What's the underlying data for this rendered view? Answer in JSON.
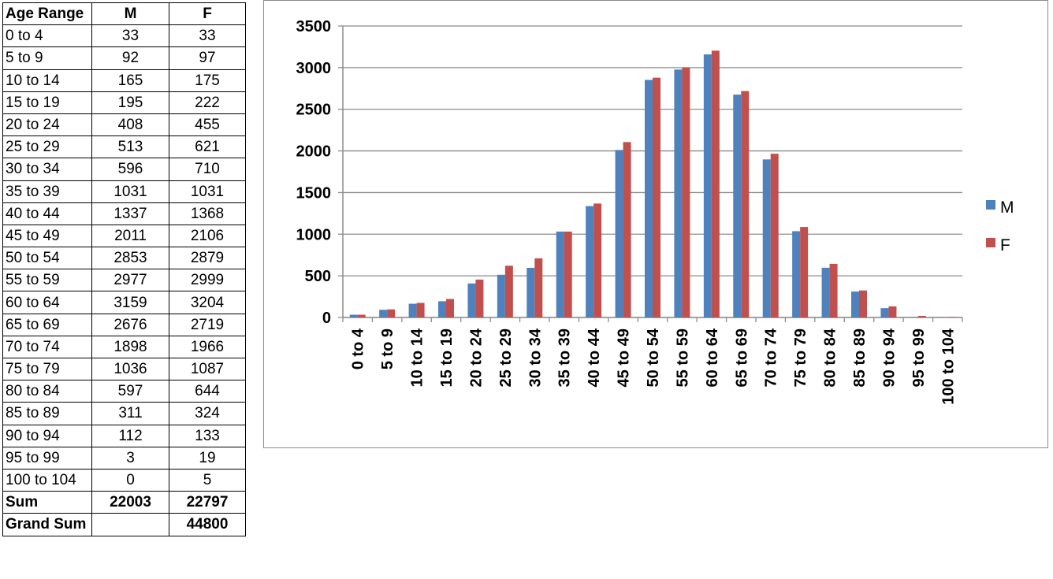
{
  "table": {
    "headers": [
      "Age Range",
      "M",
      "F"
    ],
    "rows": [
      [
        "0 to 4",
        "33",
        "33"
      ],
      [
        "5 to 9",
        "92",
        "97"
      ],
      [
        "10 to 14",
        "165",
        "175"
      ],
      [
        "15 to 19",
        "195",
        "222"
      ],
      [
        "20 to 24",
        "408",
        "455"
      ],
      [
        "25 to 29",
        "513",
        "621"
      ],
      [
        "30 to 34",
        "596",
        "710"
      ],
      [
        "35 to 39",
        "1031",
        "1031"
      ],
      [
        "40 to 44",
        "1337",
        "1368"
      ],
      [
        "45 to 49",
        "2011",
        "2106"
      ],
      [
        "50 to 54",
        "2853",
        "2879"
      ],
      [
        "55 to 59",
        "2977",
        "2999"
      ],
      [
        "60 to 64",
        "3159",
        "3204"
      ],
      [
        "65 to 69",
        "2676",
        "2719"
      ],
      [
        "70 to 74",
        "1898",
        "1966"
      ],
      [
        "75 to 79",
        "1036",
        "1087"
      ],
      [
        "80 to 84",
        "597",
        "644"
      ],
      [
        "85 to 89",
        "311",
        "324"
      ],
      [
        "90 to 94",
        "112",
        "133"
      ],
      [
        "95 to 99",
        "3",
        "19"
      ],
      [
        "100 to 104",
        "0",
        "5"
      ]
    ],
    "sum": [
      "Sum",
      "22003",
      "22797"
    ],
    "grand_sum": [
      "Grand Sum",
      "44800"
    ]
  },
  "chart_data": {
    "type": "bar",
    "categories": [
      "0 to 4",
      "5 to 9",
      "10 to 14",
      "15 to 19",
      "20 to 24",
      "25 to 29",
      "30 to 34",
      "35 to 39",
      "40 to 44",
      "45 to 49",
      "50 to 54",
      "55 to 59",
      "60 to 64",
      "65 to 69",
      "70 to 74",
      "75 to 79",
      "80 to 84",
      "85 to 89",
      "90 to 94",
      "95 to 99",
      "100 to 104"
    ],
    "series": [
      {
        "name": "M",
        "color": "#4f81bd",
        "values": [
          33,
          92,
          165,
          195,
          408,
          513,
          596,
          1031,
          1337,
          2011,
          2853,
          2977,
          3159,
          2676,
          1898,
          1036,
          597,
          311,
          112,
          3,
          0
        ]
      },
      {
        "name": "F",
        "color": "#c0504d",
        "values": [
          33,
          97,
          175,
          222,
          455,
          621,
          710,
          1031,
          1368,
          2106,
          2879,
          2999,
          3204,
          2719,
          1966,
          1087,
          644,
          324,
          133,
          19,
          5
        ]
      }
    ],
    "yticks": [
      0,
      500,
      1000,
      1500,
      2000,
      2500,
      3000,
      3500
    ],
    "ylim": [
      0,
      3500
    ],
    "grid": true,
    "legend_position": "right",
    "title": "",
    "xlabel": "",
    "ylabel": ""
  }
}
